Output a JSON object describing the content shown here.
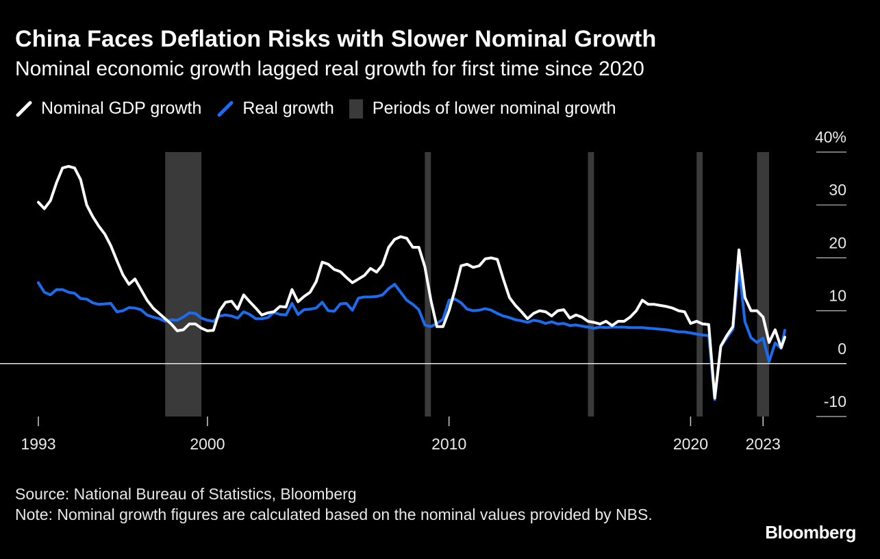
{
  "header": {
    "title": "China Faces Deflation Risks with Slower Nominal Growth",
    "subtitle": "Nominal economic growth lagged real growth for first time since 2020"
  },
  "legend": {
    "nominal": "Nominal GDP growth",
    "real": "Real growth",
    "periods": "Periods of lower nominal growth"
  },
  "footer": {
    "source": "Source: National Bureau of Statistics, Bloomberg",
    "note": "Note: Nominal growth figures are calculated based on the nominal values provided by NBS."
  },
  "brand": "Bloomberg",
  "colors": {
    "nominal": "#ffffff",
    "real": "#1a6cf0",
    "shade": "#3a3a3a",
    "background": "#000000"
  },
  "chart_data": {
    "type": "line",
    "xlabel": "",
    "ylabel": "",
    "xlim": [
      1993.0,
      2023.9
    ],
    "ylim": [
      -10,
      40
    ],
    "yticks": [
      {
        "value": 40,
        "label": "40%"
      },
      {
        "value": 30,
        "label": "30"
      },
      {
        "value": 20,
        "label": "20"
      },
      {
        "value": 10,
        "label": "10"
      },
      {
        "value": 0,
        "label": "0"
      },
      {
        "value": -10,
        "label": "-10"
      }
    ],
    "xticks": [
      {
        "value": 1993.0,
        "label": "1993"
      },
      {
        "value": 2000.0,
        "label": "2000"
      },
      {
        "value": 2010.0,
        "label": "2010"
      },
      {
        "value": 2020.0,
        "label": "2020"
      },
      {
        "value": 2023.0,
        "label": "2023"
      }
    ],
    "shaded_periods": [
      [
        1998.25,
        1999.75
      ],
      [
        2009.0,
        2009.25
      ],
      [
        2015.75,
        2016.0
      ],
      [
        2020.25,
        2020.5
      ],
      [
        2022.75,
        2023.25
      ]
    ],
    "series": [
      {
        "name": "Nominal GDP growth",
        "points": [
          [
            1993.0,
            30.5
          ],
          [
            1993.25,
            29.3
          ],
          [
            1993.5,
            30.8
          ],
          [
            1993.75,
            34.2
          ],
          [
            1994.0,
            37.0
          ],
          [
            1994.25,
            37.3
          ],
          [
            1994.5,
            37.0
          ],
          [
            1994.75,
            34.8
          ],
          [
            1995.0,
            30.0
          ],
          [
            1995.25,
            27.8
          ],
          [
            1995.5,
            26.0
          ],
          [
            1995.75,
            24.5
          ],
          [
            1996.0,
            22.3
          ],
          [
            1996.25,
            19.5
          ],
          [
            1996.5,
            16.8
          ],
          [
            1996.75,
            15.0
          ],
          [
            1997.0,
            16.0
          ],
          [
            1997.25,
            14.0
          ],
          [
            1997.5,
            12.0
          ],
          [
            1997.75,
            10.5
          ],
          [
            1998.0,
            9.5
          ],
          [
            1998.25,
            8.5
          ],
          [
            1998.5,
            7.5
          ],
          [
            1998.75,
            6.2
          ],
          [
            1999.0,
            6.4
          ],
          [
            1999.25,
            7.5
          ],
          [
            1999.5,
            7.5
          ],
          [
            1999.75,
            6.7
          ],
          [
            2000.0,
            6.2
          ],
          [
            2000.25,
            6.3
          ],
          [
            2000.5,
            10.0
          ],
          [
            2000.75,
            11.6
          ],
          [
            2001.0,
            11.8
          ],
          [
            2001.25,
            10.3
          ],
          [
            2001.5,
            13.0
          ],
          [
            2001.75,
            11.7
          ],
          [
            2002.0,
            10.5
          ],
          [
            2002.25,
            9.2
          ],
          [
            2002.5,
            9.6
          ],
          [
            2002.75,
            9.8
          ],
          [
            2003.0,
            10.8
          ],
          [
            2003.25,
            10.7
          ],
          [
            2003.5,
            14.0
          ],
          [
            2003.75,
            11.7
          ],
          [
            2004.0,
            12.7
          ],
          [
            2004.25,
            13.5
          ],
          [
            2004.5,
            15.5
          ],
          [
            2004.75,
            19.2
          ],
          [
            2005.0,
            18.8
          ],
          [
            2005.25,
            17.8
          ],
          [
            2005.5,
            17.4
          ],
          [
            2005.75,
            16.3
          ],
          [
            2006.0,
            15.3
          ],
          [
            2006.25,
            16.0
          ],
          [
            2006.5,
            16.7
          ],
          [
            2006.75,
            18.0
          ],
          [
            2007.0,
            17.3
          ],
          [
            2007.25,
            18.7
          ],
          [
            2007.5,
            22.0
          ],
          [
            2007.75,
            23.5
          ],
          [
            2008.0,
            24.0
          ],
          [
            2008.25,
            23.7
          ],
          [
            2008.5,
            22.0
          ],
          [
            2008.75,
            22.0
          ],
          [
            2009.0,
            18.3
          ],
          [
            2009.25,
            12.0
          ],
          [
            2009.5,
            7.0
          ],
          [
            2009.75,
            7.0
          ],
          [
            2010.0,
            10.0
          ],
          [
            2010.25,
            14.0
          ],
          [
            2010.5,
            18.5
          ],
          [
            2010.75,
            18.8
          ],
          [
            2011.0,
            18.2
          ],
          [
            2011.25,
            18.5
          ],
          [
            2011.5,
            19.8
          ],
          [
            2011.75,
            20.0
          ],
          [
            2012.0,
            19.7
          ],
          [
            2012.25,
            16.0
          ],
          [
            2012.5,
            12.5
          ],
          [
            2012.75,
            11.0
          ],
          [
            2013.0,
            9.8
          ],
          [
            2013.25,
            8.5
          ],
          [
            2013.5,
            9.5
          ],
          [
            2013.75,
            10.0
          ],
          [
            2014.0,
            9.8
          ],
          [
            2014.25,
            9.0
          ],
          [
            2014.5,
            10.0
          ],
          [
            2014.75,
            10.2
          ],
          [
            2015.0,
            8.6
          ],
          [
            2015.25,
            9.2
          ],
          [
            2015.5,
            8.8
          ],
          [
            2015.75,
            8.0
          ],
          [
            2016.0,
            7.8
          ],
          [
            2016.25,
            7.5
          ],
          [
            2016.5,
            8.0
          ],
          [
            2016.75,
            7.2
          ],
          [
            2017.0,
            8.0
          ],
          [
            2017.25,
            8.0
          ],
          [
            2017.5,
            8.8
          ],
          [
            2017.75,
            10.0
          ],
          [
            2018.0,
            12.0
          ],
          [
            2018.25,
            11.2
          ],
          [
            2018.5,
            11.2
          ],
          [
            2018.75,
            11.0
          ],
          [
            2019.0,
            10.8
          ],
          [
            2019.25,
            10.5
          ],
          [
            2019.5,
            10.0
          ],
          [
            2019.75,
            9.8
          ],
          [
            2020.0,
            7.6
          ],
          [
            2020.25,
            8.0
          ],
          [
            2020.5,
            7.5
          ],
          [
            2020.75,
            7.4
          ],
          [
            2021.0,
            -6.5
          ],
          [
            2021.25,
            3.3
          ],
          [
            2021.5,
            5.3
          ],
          [
            2021.75,
            7.0
          ],
          [
            2022.0,
            21.5
          ],
          [
            2022.25,
            12.5
          ],
          [
            2022.5,
            10.0
          ],
          [
            2022.75,
            10.0
          ],
          [
            2023.0,
            8.8
          ],
          [
            2023.25,
            4.0
          ],
          [
            2023.5,
            6.4
          ],
          [
            2023.75,
            3.0
          ],
          [
            2023.9,
            5.0
          ]
        ]
      },
      {
        "name": "Real growth",
        "points": [
          [
            1993.0,
            15.3
          ],
          [
            1993.25,
            13.5
          ],
          [
            1993.5,
            13.0
          ],
          [
            1993.75,
            14.0
          ],
          [
            1994.0,
            14.0
          ],
          [
            1994.25,
            13.5
          ],
          [
            1994.5,
            13.3
          ],
          [
            1994.75,
            12.3
          ],
          [
            1995.0,
            12.2
          ],
          [
            1995.25,
            11.5
          ],
          [
            1995.5,
            11.2
          ],
          [
            1995.75,
            11.3
          ],
          [
            1996.0,
            11.4
          ],
          [
            1996.25,
            9.8
          ],
          [
            1996.5,
            10.0
          ],
          [
            1996.75,
            10.6
          ],
          [
            1997.0,
            10.5
          ],
          [
            1997.25,
            10.2
          ],
          [
            1997.5,
            9.2
          ],
          [
            1997.75,
            8.8
          ],
          [
            1998.0,
            8.5
          ],
          [
            1998.25,
            8.0
          ],
          [
            1998.5,
            8.3
          ],
          [
            1998.75,
            8.2
          ],
          [
            1999.0,
            8.8
          ],
          [
            1999.25,
            9.6
          ],
          [
            1999.5,
            9.5
          ],
          [
            1999.75,
            8.6
          ],
          [
            2000.0,
            8.2
          ],
          [
            2000.25,
            8.0
          ],
          [
            2000.5,
            9.0
          ],
          [
            2000.75,
            9.2
          ],
          [
            2001.0,
            9.0
          ],
          [
            2001.25,
            8.6
          ],
          [
            2001.5,
            9.8
          ],
          [
            2001.75,
            9.3
          ],
          [
            2002.0,
            8.5
          ],
          [
            2002.25,
            8.5
          ],
          [
            2002.5,
            8.7
          ],
          [
            2002.75,
            9.7
          ],
          [
            2003.0,
            9.3
          ],
          [
            2003.25,
            9.2
          ],
          [
            2003.5,
            11.4
          ],
          [
            2003.75,
            9.3
          ],
          [
            2004.0,
            10.2
          ],
          [
            2004.25,
            10.3
          ],
          [
            2004.5,
            10.5
          ],
          [
            2004.75,
            11.6
          ],
          [
            2005.0,
            10.0
          ],
          [
            2005.25,
            9.9
          ],
          [
            2005.5,
            11.3
          ],
          [
            2005.75,
            11.4
          ],
          [
            2006.0,
            10.1
          ],
          [
            2006.25,
            12.4
          ],
          [
            2006.5,
            12.6
          ],
          [
            2006.75,
            12.6
          ],
          [
            2007.0,
            12.7
          ],
          [
            2007.25,
            13.0
          ],
          [
            2007.5,
            14.2
          ],
          [
            2007.75,
            15.0
          ],
          [
            2008.0,
            13.5
          ],
          [
            2008.25,
            12.0
          ],
          [
            2008.5,
            11.2
          ],
          [
            2008.75,
            10.2
          ],
          [
            2009.0,
            7.3
          ],
          [
            2009.25,
            7.0
          ],
          [
            2009.5,
            7.6
          ],
          [
            2009.75,
            8.4
          ],
          [
            2010.0,
            12.0
          ],
          [
            2010.25,
            12.2
          ],
          [
            2010.5,
            11.5
          ],
          [
            2010.75,
            10.3
          ],
          [
            2011.0,
            10.0
          ],
          [
            2011.25,
            10.1
          ],
          [
            2011.5,
            10.4
          ],
          [
            2011.75,
            10.1
          ],
          [
            2012.0,
            9.5
          ],
          [
            2012.25,
            9.0
          ],
          [
            2012.5,
            8.7
          ],
          [
            2012.75,
            8.3
          ],
          [
            2013.0,
            8.1
          ],
          [
            2013.25,
            7.8
          ],
          [
            2013.5,
            8.2
          ],
          [
            2013.75,
            8.0
          ],
          [
            2014.0,
            7.6
          ],
          [
            2014.25,
            7.9
          ],
          [
            2014.5,
            7.5
          ],
          [
            2014.75,
            7.6
          ],
          [
            2015.0,
            7.2
          ],
          [
            2015.25,
            7.3
          ],
          [
            2015.5,
            7.1
          ],
          [
            2015.75,
            6.9
          ],
          [
            2016.0,
            6.7
          ],
          [
            2016.25,
            6.9
          ],
          [
            2016.5,
            6.8
          ],
          [
            2016.75,
            6.9
          ],
          [
            2017.0,
            6.9
          ],
          [
            2017.25,
            6.9
          ],
          [
            2017.5,
            6.8
          ],
          [
            2017.75,
            6.8
          ],
          [
            2018.0,
            6.8
          ],
          [
            2018.25,
            6.7
          ],
          [
            2018.5,
            6.6
          ],
          [
            2018.75,
            6.5
          ],
          [
            2019.0,
            6.4
          ],
          [
            2019.25,
            6.2
          ],
          [
            2019.5,
            6.0
          ],
          [
            2019.75,
            6.0
          ],
          [
            2020.0,
            5.8
          ],
          [
            2020.25,
            5.6
          ],
          [
            2020.5,
            5.4
          ],
          [
            2020.75,
            5.3
          ],
          [
            2021.0,
            -6.8
          ],
          [
            2021.25,
            3.2
          ],
          [
            2021.5,
            4.9
          ],
          [
            2021.75,
            6.5
          ],
          [
            2022.0,
            18.3
          ],
          [
            2022.25,
            7.9
          ],
          [
            2022.5,
            4.9
          ],
          [
            2022.75,
            4.0
          ],
          [
            2023.0,
            4.8
          ],
          [
            2023.25,
            0.4
          ],
          [
            2023.5,
            3.9
          ],
          [
            2023.75,
            2.9
          ],
          [
            2023.9,
            6.3
          ]
        ]
      }
    ]
  }
}
